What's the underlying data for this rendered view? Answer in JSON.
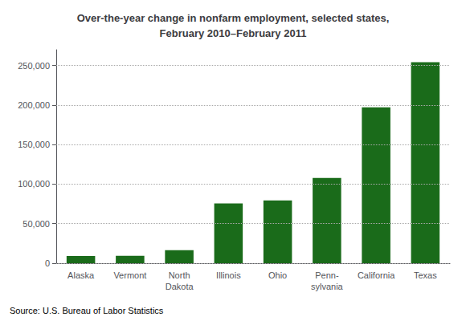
{
  "chart_data": {
    "type": "bar",
    "title": "Over-the-year change in nonfarm employment, selected states,\nFebruary 2010–February 2011",
    "categories": [
      "Alaska",
      "Vermont",
      "North\nDakota",
      "Illinois",
      "Ohio",
      "Penn-\nsylvania",
      "California",
      "Texas"
    ],
    "values": [
      9100,
      9300,
      16400,
      75700,
      79300,
      107800,
      197200,
      254200
    ],
    "color": "#1a6b1a",
    "ylim": [
      0,
      270000
    ],
    "yticks": [
      0,
      {
        "value": 50000,
        "label": "50,000"
      },
      {
        "value": 100000,
        "label": "100,000"
      },
      {
        "value": 150000,
        "label": "150,000"
      },
      {
        "value": 200000,
        "label": "200,000"
      },
      {
        "value": 250000,
        "label": "250,000"
      }
    ],
    "grid": true,
    "annotation": "Source: U.S. Bureau of Labor Statistics"
  }
}
